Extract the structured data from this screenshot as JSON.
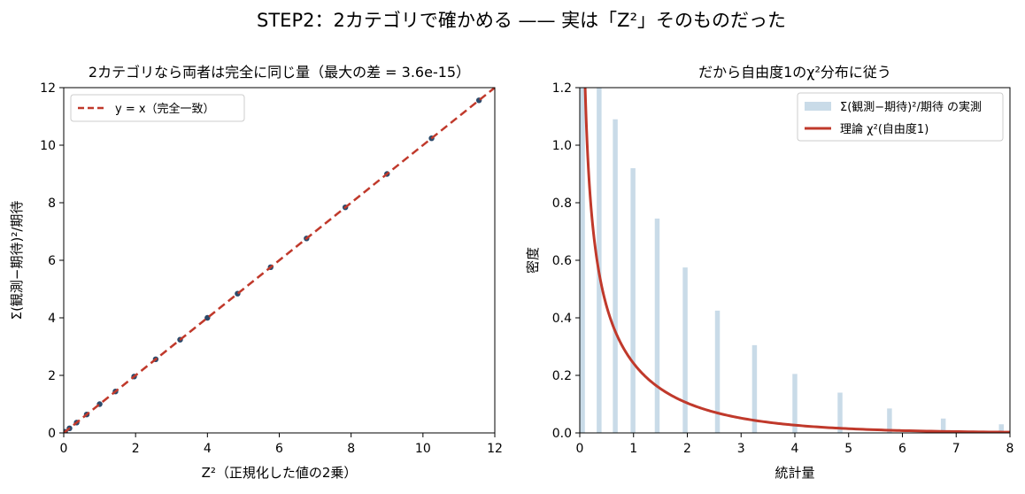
{
  "suptitle": "STEP2：2カテゴリで確かめる —— 実は「Z²」そのものだった",
  "chart_data": [
    {
      "type": "scatter",
      "title": "2カテゴリなら両者は完全に同じ量（最大の差 = 3.6e-15）",
      "xlabel": "Z²（正規化した値の2乗）",
      "ylabel": "Σ(観測−期待)²/期待",
      "xlim": [
        0,
        12
      ],
      "ylim": [
        0,
        12
      ],
      "xticks": [
        "0",
        "2",
        "4",
        "6",
        "8",
        "10",
        "12"
      ],
      "yticks": [
        "0",
        "2",
        "4",
        "6",
        "8",
        "10",
        "12"
      ],
      "legend": {
        "placement": "top-left",
        "entries": [
          "y = x（完全一致）"
        ]
      },
      "points": {
        "x": [
          0.0,
          0.04,
          0.16,
          0.36,
          0.64,
          1.0,
          1.44,
          1.96,
          2.56,
          3.24,
          4.0,
          4.84,
          5.76,
          6.76,
          7.84,
          9.0,
          10.24,
          11.56
        ],
        "y": [
          0.0,
          0.04,
          0.16,
          0.36,
          0.64,
          1.0,
          1.44,
          1.96,
          2.56,
          3.24,
          4.0,
          4.84,
          5.76,
          6.76,
          7.84,
          9.0,
          10.24,
          11.56
        ]
      },
      "line": {
        "name": "y = x（完全一致）",
        "x": [
          0,
          12
        ],
        "y": [
          0,
          12
        ],
        "style": "dashed"
      },
      "colors": {
        "points": "#2b4a6b",
        "line": "#c0392b"
      }
    },
    {
      "type": "bar",
      "title": "だから自由度1のχ²分布に従う",
      "xlabel": "統計量",
      "ylabel": "密度",
      "xlim": [
        0,
        8
      ],
      "ylim": [
        0,
        1.2
      ],
      "xticks": [
        "0",
        "1",
        "2",
        "3",
        "4",
        "5",
        "6",
        "7",
        "8"
      ],
      "yticks": [
        "0.0",
        "0.2",
        "0.4",
        "0.6",
        "0.8",
        "1.0",
        "1.2"
      ],
      "legend": {
        "placement": "top-right",
        "entries": [
          "Σ(観測−期待)²/期待 の実測",
          "理論 χ²(自由度1)"
        ]
      },
      "histogram": {
        "name": "Σ(観測−期待)²/期待 の実測",
        "x": [
          0.05,
          0.36,
          0.66,
          0.99,
          1.44,
          1.96,
          2.56,
          3.25,
          4.0,
          4.84,
          5.76,
          6.76,
          7.84
        ],
        "values": [
          1.2,
          1.2,
          1.09,
          0.92,
          0.745,
          0.575,
          0.425,
          0.305,
          0.205,
          0.14,
          0.085,
          0.05,
          0.03
        ]
      },
      "curve": {
        "name": "理論 χ²(自由度1)",
        "function": "chi2_pdf_df1",
        "x_range": [
          0.05,
          8
        ]
      },
      "colors": {
        "bars": "#c9dbe8",
        "curve": "#c0392b"
      }
    }
  ]
}
